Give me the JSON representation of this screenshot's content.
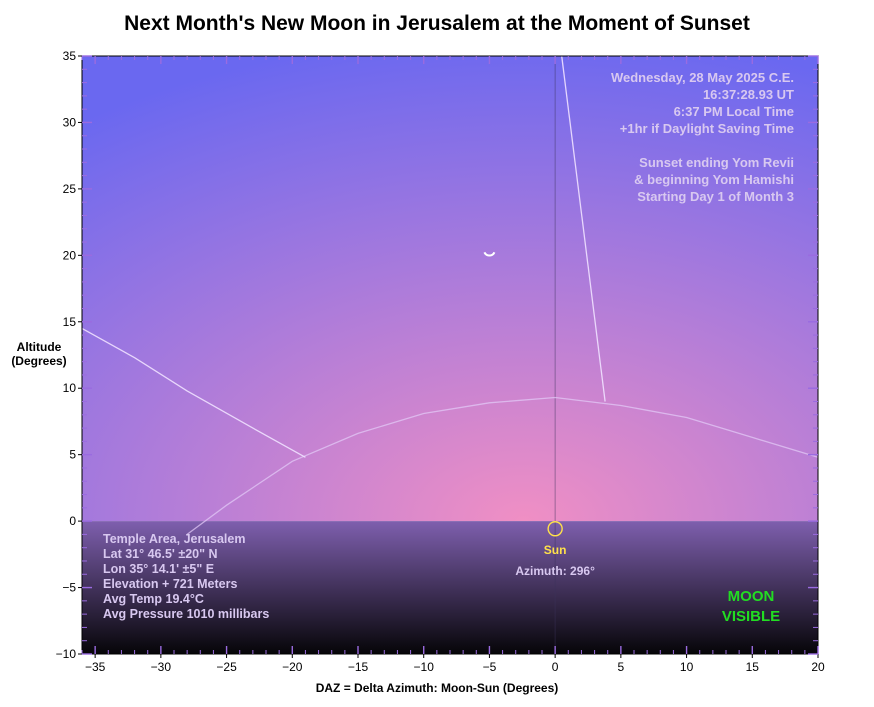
{
  "title": "Next Month's New Moon in Jerusalem at the Moment of Sunset",
  "chart_data": {
    "type": "scatter",
    "title": "Next Month's New Moon in Jerusalem at the Moment of Sunset",
    "xlabel": "DAZ = Delta Azimuth: Moon-Sun (Degrees)",
    "ylabel_lines": [
      "Altitude",
      "(Degrees)"
    ],
    "xlim": [
      -36,
      20
    ],
    "ylim": [
      -10,
      35
    ],
    "x_ticks": [
      -35,
      -30,
      -25,
      -20,
      -15,
      -10,
      -5,
      0,
      5,
      10,
      15,
      20
    ],
    "x_tick_labels": [
      "−35",
      "−30",
      "−25",
      "−20",
      "−15",
      "−10",
      "−5",
      "0",
      "5",
      "10",
      "15",
      "20"
    ],
    "y_ticks": [
      -10,
      -5,
      0,
      5,
      10,
      15,
      20,
      25,
      30,
      35
    ],
    "y_tick_labels": [
      "−10",
      "−5",
      "0",
      "5",
      "10",
      "15",
      "20",
      "25",
      "30",
      "35"
    ],
    "grid": true,
    "moon": {
      "x": -5,
      "y": 20
    },
    "sun": {
      "x": 0,
      "y": -0.5,
      "label": "Sun",
      "azimuth_text": "Azimuth: 296°"
    },
    "ecliptic_arc": [
      [
        -28,
        -1
      ],
      [
        -25,
        1.2
      ],
      [
        -20,
        4.5
      ],
      [
        -15,
        6.6
      ],
      [
        -10,
        8.1
      ],
      [
        -5,
        8.9
      ],
      [
        0,
        9.3
      ],
      [
        5,
        8.7
      ],
      [
        10,
        7.8
      ],
      [
        15,
        6.3
      ],
      [
        20,
        4.8
      ]
    ],
    "moon_path_lines": [
      [
        [
          -36,
          14.5
        ],
        [
          -32,
          12.3
        ],
        [
          -28,
          9.8
        ],
        [
          -23,
          7.0
        ],
        [
          -19,
          4.8
        ]
      ],
      [
        [
          0.5,
          35
        ],
        [
          3.8,
          9.0
        ]
      ]
    ],
    "date_lines": [
      "Wednesday, 28 May 2025 C.E.",
      "16:37:28.93 UT",
      "6:37 PM Local Time",
      "+1hr if Daylight Saving Time"
    ],
    "sunset_lines": [
      "Sunset ending Yom Revii",
      "& beginning Yom Hamishi",
      "Starting Day 1 of Month 3"
    ],
    "location_lines": [
      "Temple Area, Jerusalem",
      "Lat 31° 46.5' ±20\" N",
      "Lon 35° 14.1' ±5\" E",
      "Elevation + 721 Meters",
      "Avg Temp 19.4°C",
      "Avg Pressure 1010 millibars"
    ],
    "visibility_lines": [
      "MOON",
      "VISIBLE"
    ],
    "colors": {
      "sky_top": "#6a68f0",
      "sky_horizon": "#f08fc4",
      "ground_top": "#7e5fae",
      "ground_bottom": "#060508",
      "overlay_text": "#d8c8f0",
      "sun": "#ffe14a",
      "visible": "#22dd22"
    }
  }
}
